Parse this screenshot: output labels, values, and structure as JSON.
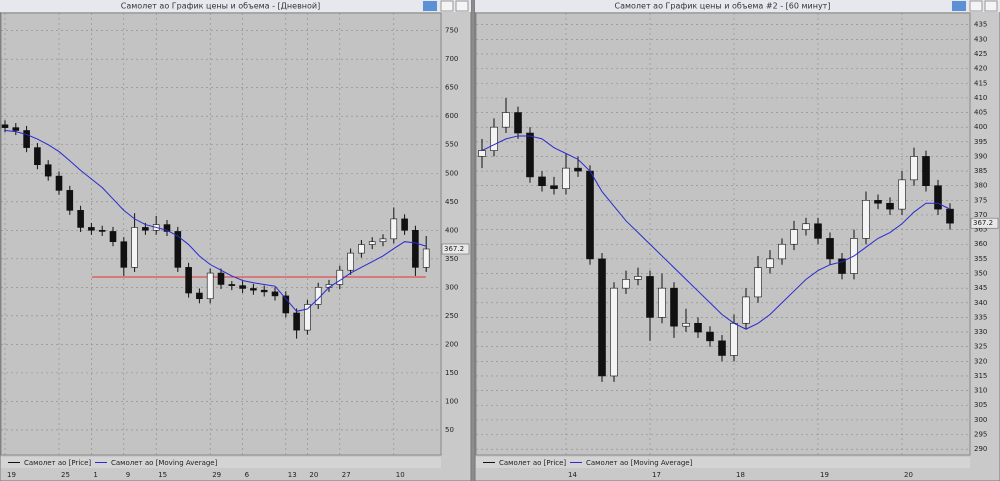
{
  "chart_data": [
    {
      "type": "candlestick",
      "title": "Самолет ао График цены и объема - [Дневной]",
      "categories": [
        "19",
        null,
        null,
        null,
        null,
        "25",
        null,
        null,
        "1",
        null,
        null,
        "9",
        null,
        null,
        "15",
        null,
        null,
        null,
        null,
        "29",
        null,
        null,
        "6",
        null,
        null,
        null,
        "13",
        null,
        "20",
        null,
        null,
        "27",
        null,
        null,
        null,
        null,
        "10",
        null,
        null,
        null
      ],
      "series": [
        {
          "name": "Самолет ао [Price]",
          "open": [
            585,
            580,
            575,
            545,
            515,
            495,
            470,
            435,
            405,
            400,
            398,
            380,
            335,
            405,
            400,
            410,
            398,
            335,
            290,
            280,
            325,
            305,
            303,
            298,
            295,
            292,
            285,
            255,
            225,
            270,
            300,
            305,
            330,
            360,
            375,
            380,
            385,
            420,
            400,
            335
          ],
          "high": [
            593,
            588,
            583,
            553,
            523,
            503,
            478,
            443,
            413,
            408,
            406,
            388,
            430,
            413,
            425,
            418,
            406,
            343,
            298,
            333,
            333,
            311,
            311,
            306,
            303,
            300,
            293,
            263,
            278,
            308,
            313,
            338,
            368,
            383,
            388,
            393,
            440,
            428,
            408,
            390
          ],
          "low": [
            572,
            567,
            537,
            507,
            487,
            462,
            427,
            397,
            392,
            390,
            372,
            320,
            327,
            392,
            392,
            390,
            327,
            282,
            272,
            272,
            297,
            295,
            290,
            287,
            284,
            277,
            247,
            210,
            217,
            262,
            292,
            297,
            322,
            352,
            367,
            372,
            377,
            392,
            320,
            327
          ],
          "close": [
            580,
            575,
            545,
            515,
            495,
            470,
            435,
            405,
            400,
            398,
            380,
            335,
            405,
            400,
            410,
            398,
            335,
            290,
            280,
            325,
            305,
            303,
            298,
            295,
            292,
            285,
            255,
            225,
            270,
            300,
            305,
            330,
            360,
            375,
            380,
            385,
            420,
            400,
            335,
            367.2
          ]
        },
        {
          "name": "Самолет ао [Moving Average]",
          "color": "#2a2ad0",
          "values": [
            575,
            573,
            568,
            560,
            550,
            538,
            522,
            505,
            490,
            475,
            455,
            435,
            420,
            410,
            405,
            400,
            390,
            375,
            355,
            340,
            330,
            320,
            312,
            308,
            305,
            302,
            280,
            258,
            262,
            280,
            300,
            312,
            325,
            335,
            345,
            355,
            368,
            380,
            378,
            372
          ]
        }
      ],
      "hline": {
        "value": 318,
        "color": "#e83030"
      },
      "ylim": [
        6,
        781
      ],
      "yticks": [
        50,
        100,
        150,
        200,
        250,
        300,
        350,
        400,
        450,
        500,
        550,
        600,
        650,
        700,
        750
      ],
      "grid": true
    },
    {
      "type": "candlestick",
      "title": "Самолет ао График цены и объема #2 - [60 минут]",
      "categories": [
        null,
        null,
        null,
        null,
        null,
        null,
        null,
        "14",
        null,
        null,
        null,
        null,
        null,
        null,
        "17",
        null,
        null,
        null,
        null,
        null,
        null,
        "18",
        null,
        null,
        null,
        null,
        null,
        null,
        "19",
        null,
        null,
        null,
        null,
        null,
        null,
        "20",
        null,
        null,
        null,
        null
      ],
      "series": [
        {
          "name": "Самолет ао [Price]",
          "open": [
            390,
            392,
            400,
            405,
            398,
            383,
            380,
            379,
            386,
            385,
            355,
            315,
            345,
            348,
            349,
            335,
            345,
            332,
            333,
            330,
            327,
            322,
            333,
            342,
            352,
            355,
            360,
            365,
            367,
            362,
            355,
            350,
            362,
            375,
            374,
            372,
            382,
            390,
            380,
            372
          ],
          "high": [
            396,
            403,
            410,
            407,
            400,
            385,
            383,
            391,
            390,
            387,
            357,
            347,
            351,
            352,
            351,
            350,
            347,
            338,
            335,
            332,
            329,
            336,
            345,
            356,
            358,
            362,
            368,
            369,
            369,
            364,
            357,
            365,
            378,
            377,
            376,
            385,
            393,
            392,
            382,
            374
          ],
          "low": [
            386,
            390,
            398,
            396,
            381,
            378,
            377,
            377,
            383,
            353,
            313,
            313,
            343,
            346,
            327,
            333,
            328,
            330,
            328,
            325,
            320,
            320,
            331,
            340,
            350,
            353,
            358,
            363,
            360,
            353,
            348,
            348,
            360,
            372,
            370,
            370,
            380,
            378,
            370,
            365
          ],
          "close": [
            392,
            400,
            405,
            398,
            383,
            380,
            379,
            386,
            385,
            355,
            315,
            345,
            348,
            349,
            335,
            345,
            332,
            333,
            330,
            327,
            322,
            333,
            342,
            352,
            355,
            360,
            365,
            367,
            362,
            355,
            350,
            362,
            375,
            374,
            372,
            382,
            390,
            380,
            372,
            367.2
          ]
        },
        {
          "name": "Самолет ао [Moving Average]",
          "color": "#2a2ad0",
          "values": [
            392,
            394,
            396,
            397,
            397,
            396,
            393,
            391,
            389,
            385,
            378,
            373,
            368,
            364,
            360,
            356,
            352,
            348,
            344,
            340,
            336,
            333,
            331,
            333,
            336,
            340,
            344,
            348,
            351,
            353,
            354,
            356,
            359,
            362,
            364,
            367,
            371,
            374,
            374,
            372
          ]
        }
      ],
      "ylim": [
        288,
        439
      ],
      "yticks": [
        290,
        295,
        300,
        305,
        310,
        315,
        320,
        325,
        330,
        335,
        340,
        345,
        350,
        355,
        360,
        365,
        370,
        375,
        380,
        385,
        390,
        395,
        400,
        405,
        410,
        415,
        420,
        425,
        430,
        435
      ],
      "grid": true
    }
  ]
}
